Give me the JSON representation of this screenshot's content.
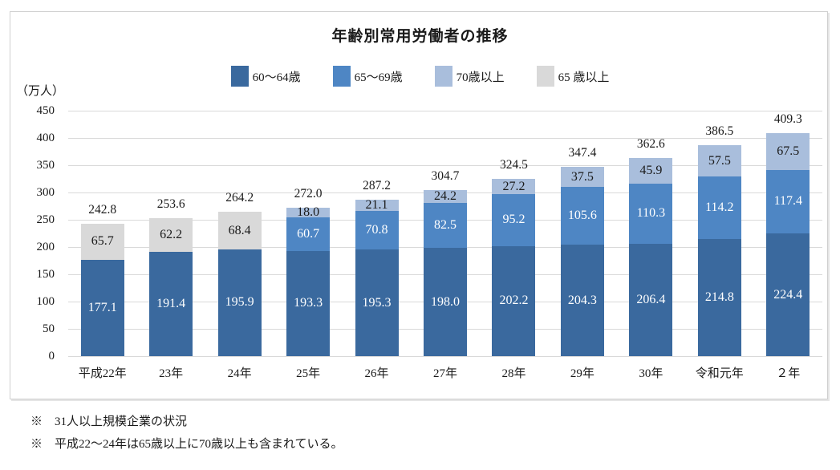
{
  "chart": {
    "title": "年齢別常用労働者の推移",
    "y_unit": "（万人）"
  },
  "notes": [
    "※　31人以上規模企業の状況",
    "※　平成22〜24年は65歳以上に70歳以上も含まれている。"
  ],
  "chart_data": {
    "type": "bar",
    "stacked": true,
    "title": "年齢別常用労働者の推移",
    "y_unit": "（万人）",
    "ylim": [
      0,
      450
    ],
    "ytick_step": 50,
    "grid": true,
    "legend_position": "top",
    "categories": [
      "平成22年",
      "23年",
      "24年",
      "25年",
      "26年",
      "27年",
      "28年",
      "29年",
      "30年",
      "令和元年",
      "２年"
    ],
    "series": [
      {
        "name": "60〜64歳",
        "color": "#3A699E",
        "label_color": "#FFFFFF",
        "values": [
          177.1,
          191.4,
          195.9,
          193.3,
          195.3,
          198.0,
          202.2,
          204.3,
          206.4,
          214.8,
          224.4
        ]
      },
      {
        "name": "65〜69歳",
        "color": "#4E86C4",
        "label_color": "#FFFFFF",
        "values": [
          null,
          null,
          null,
          60.7,
          70.8,
          82.5,
          95.2,
          105.6,
          110.3,
          114.2,
          117.4
        ]
      },
      {
        "name": "70歳以上",
        "color": "#A9BEDC",
        "label_color": "#1A1A1A",
        "values": [
          null,
          null,
          null,
          18.0,
          21.1,
          24.2,
          27.2,
          37.5,
          45.9,
          57.5,
          67.5
        ]
      },
      {
        "name": "65 歳以上",
        "color": "#D9D9D9",
        "label_color": "#1A1A1A",
        "values": [
          65.7,
          62.2,
          68.4,
          null,
          null,
          null,
          null,
          null,
          null,
          null,
          null
        ]
      }
    ],
    "totals": [
      242.8,
      253.6,
      264.2,
      272.0,
      287.2,
      304.7,
      324.5,
      347.4,
      362.6,
      386.5,
      409.3
    ]
  }
}
